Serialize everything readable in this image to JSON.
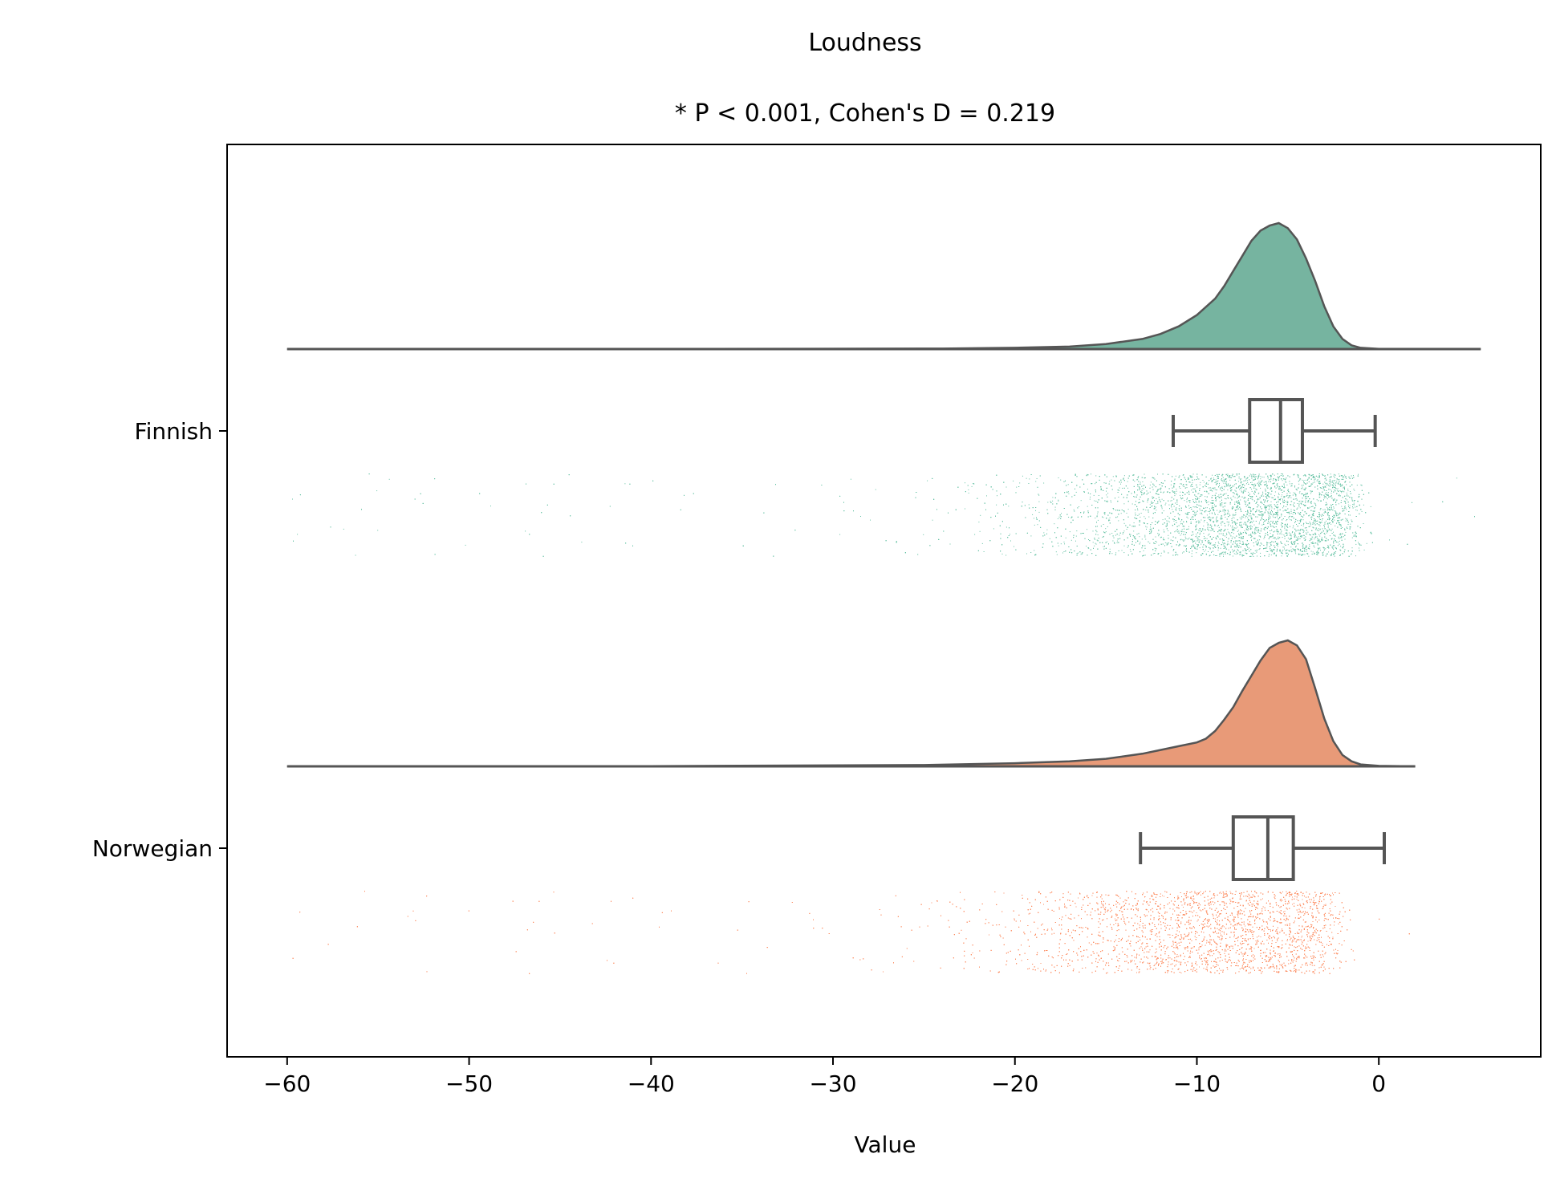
{
  "chart_data": {
    "type": "raincloud",
    "title": "Loudness",
    "subtitle": "* P < 0.001, Cohen's D = 0.219",
    "xlabel": "Value",
    "ylabel": "",
    "xlim": [
      -63.3,
      8.9
    ],
    "xticks": [
      -60,
      -50,
      -40,
      -30,
      -20,
      -10,
      0
    ],
    "xtick_labels": [
      "−60",
      "−50",
      "−40",
      "−30",
      "−20",
      "−10",
      "0"
    ],
    "grid": false,
    "groups": [
      {
        "name": "Finnish",
        "color": "#66c2a5",
        "violin_fill": "#76b4a0",
        "density_range": [
          -60,
          5.6
        ],
        "density": [
          [
            -60,
            0
          ],
          [
            -40,
            0.001
          ],
          [
            -24,
            0.004
          ],
          [
            -20,
            0.01
          ],
          [
            -17,
            0.02
          ],
          [
            -15,
            0.04
          ],
          [
            -13,
            0.08
          ],
          [
            -12,
            0.12
          ],
          [
            -11,
            0.18
          ],
          [
            -10,
            0.27
          ],
          [
            -9,
            0.4
          ],
          [
            -8.5,
            0.5
          ],
          [
            -8,
            0.62
          ],
          [
            -7.5,
            0.74
          ],
          [
            -7,
            0.86
          ],
          [
            -6.5,
            0.94
          ],
          [
            -6,
            0.98
          ],
          [
            -5.5,
            1.0
          ],
          [
            -5,
            0.96
          ],
          [
            -4.5,
            0.87
          ],
          [
            -4,
            0.72
          ],
          [
            -3.5,
            0.54
          ],
          [
            -3,
            0.34
          ],
          [
            -2.5,
            0.18
          ],
          [
            -2,
            0.08
          ],
          [
            -1.5,
            0.03
          ],
          [
            -1,
            0.01
          ],
          [
            0,
            0.002
          ],
          [
            5.6,
            0
          ]
        ],
        "box": {
          "whislo": -11.3,
          "q1": -7.1,
          "med": -5.4,
          "q3": -4.2,
          "whishi": -0.2
        },
        "points": {
          "n": 9000,
          "core": [
            -10,
            -1.5
          ],
          "tail_min": -60,
          "tail_max": 5.6
        }
      },
      {
        "name": "Norwegian",
        "color": "#fc8d62",
        "violin_fill": "#e89a78",
        "density_range": [
          -60,
          2.0
        ],
        "density": [
          [
            -60,
            0
          ],
          [
            -40,
            0.002
          ],
          [
            -25,
            0.01
          ],
          [
            -20,
            0.025
          ],
          [
            -17,
            0.04
          ],
          [
            -15,
            0.06
          ],
          [
            -13,
            0.1
          ],
          [
            -12,
            0.13
          ],
          [
            -11,
            0.16
          ],
          [
            -10,
            0.19
          ],
          [
            -9.5,
            0.22
          ],
          [
            -9,
            0.28
          ],
          [
            -8.5,
            0.37
          ],
          [
            -8,
            0.47
          ],
          [
            -7.5,
            0.6
          ],
          [
            -7,
            0.72
          ],
          [
            -6.5,
            0.84
          ],
          [
            -6,
            0.94
          ],
          [
            -5.5,
            0.98
          ],
          [
            -5,
            1.0
          ],
          [
            -4.5,
            0.96
          ],
          [
            -4,
            0.85
          ],
          [
            -3.5,
            0.62
          ],
          [
            -3,
            0.38
          ],
          [
            -2.5,
            0.2
          ],
          [
            -2,
            0.09
          ],
          [
            -1.5,
            0.04
          ],
          [
            -1,
            0.015
          ],
          [
            0,
            0.004
          ],
          [
            2.0,
            0
          ]
        ],
        "box": {
          "whislo": -13.1,
          "q1": -8.0,
          "med": -6.1,
          "q3": -4.7,
          "whishi": 0.3
        },
        "points": {
          "n": 9000,
          "core": [
            -12,
            -2.5
          ],
          "tail_min": -60,
          "tail_max": 2.0
        }
      }
    ]
  }
}
